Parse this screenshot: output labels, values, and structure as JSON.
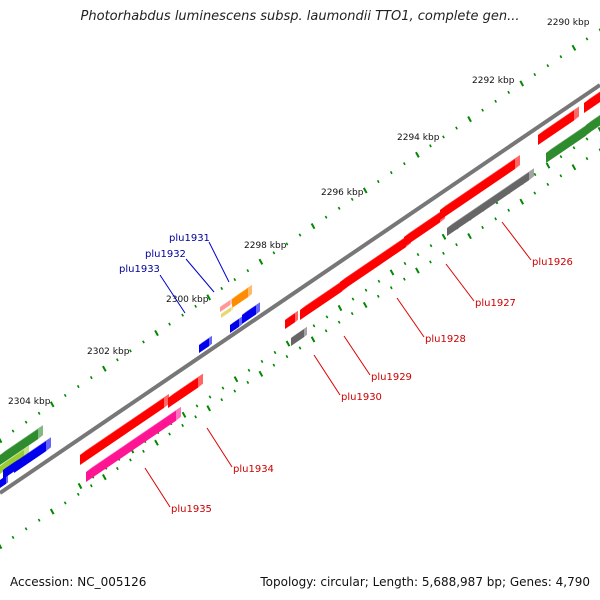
{
  "title": "Photorhabdus luminescens subsp. laumondii TTO1, complete gen...",
  "footer": {
    "accession": "Accession: NC_005126",
    "summary": "Topology: circular; Length: 5,688,987 bp; Genes: 4,790"
  },
  "ruler": {
    "ticks": [
      "2290 kbp",
      "2292 kbp",
      "2294 kbp",
      "2296 kbp",
      "2298 kbp",
      "2300 kbp",
      "2302 kbp",
      "2304 kbp"
    ]
  },
  "genes": {
    "plu1926": "plu1926",
    "plu1927": "plu1927",
    "plu1928": "plu1928",
    "plu1929": "plu1929",
    "plu1930": "plu1930",
    "plu1931": "plu1931",
    "plu1932": "plu1932",
    "plu1933": "plu1933",
    "plu1934": "plu1934",
    "plu1935": "plu1935"
  },
  "colors": {
    "red": "#ff0000",
    "gray": "#666666",
    "green": "#2e8b2e",
    "lightgreen": "#9acd32",
    "blue": "#0000ee",
    "magenta": "#ff1493",
    "orange": "#ff8c00",
    "label_red": "#cc0000",
    "label_blue": "#000099",
    "tick_green": "#008800"
  }
}
